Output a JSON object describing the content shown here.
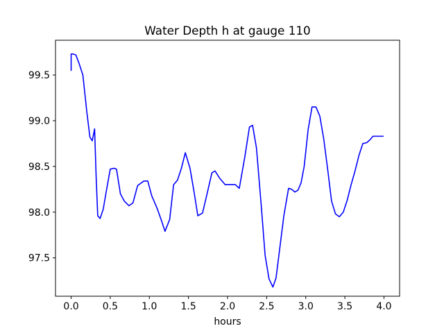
{
  "chart_data": {
    "type": "line",
    "title": "Water Depth h at gauge 110",
    "xlabel": "hours",
    "ylabel": "",
    "xlim": [
      -0.2,
      4.2
    ],
    "ylim": [
      97.08,
      99.88
    ],
    "xticks": [
      0.0,
      0.5,
      1.0,
      1.5,
      2.0,
      2.5,
      3.0,
      3.5,
      4.0
    ],
    "xtick_labels": [
      "0.0",
      "0.5",
      "1.0",
      "1.5",
      "2.0",
      "2.5",
      "3.0",
      "3.5",
      "4.0"
    ],
    "yticks": [
      97.5,
      98.0,
      98.5,
      99.0,
      99.5
    ],
    "ytick_labels": [
      "97.5",
      "98.0",
      "98.5",
      "99.0",
      "99.5"
    ],
    "grid": false,
    "series": [
      {
        "color": "#0000ff",
        "x": [
          0.0,
          0.0,
          0.02,
          0.06,
          0.1,
          0.15,
          0.2,
          0.24,
          0.27,
          0.3,
          0.32,
          0.34,
          0.37,
          0.41,
          0.45,
          0.5,
          0.55,
          0.58,
          0.63,
          0.68,
          0.74,
          0.79,
          0.85,
          0.93,
          0.98,
          1.03,
          1.1,
          1.15,
          1.2,
          1.26,
          1.31,
          1.36,
          1.41,
          1.46,
          1.52,
          1.57,
          1.62,
          1.68,
          1.73,
          1.8,
          1.84,
          1.9,
          1.97,
          2.03,
          2.1,
          2.15,
          2.22,
          2.28,
          2.32,
          2.37,
          2.43,
          2.48,
          2.53,
          2.58,
          2.62,
          2.67,
          2.72,
          2.78,
          2.82,
          2.86,
          2.9,
          2.94,
          2.98,
          3.03,
          3.08,
          3.13,
          3.18,
          3.23,
          3.28,
          3.33,
          3.38,
          3.43,
          3.48,
          3.53,
          3.58,
          3.63,
          3.68,
          3.73,
          3.78,
          3.82,
          3.86,
          3.9,
          3.95,
          3.99
        ],
        "y": [
          99.55,
          99.73,
          99.73,
          99.72,
          99.63,
          99.5,
          99.1,
          98.82,
          98.78,
          98.91,
          98.38,
          97.96,
          97.93,
          98.03,
          98.23,
          98.47,
          98.48,
          98.47,
          98.2,
          98.12,
          98.07,
          98.1,
          98.29,
          98.34,
          98.34,
          98.18,
          98.04,
          97.92,
          97.79,
          97.92,
          98.3,
          98.35,
          98.48,
          98.65,
          98.48,
          98.23,
          97.96,
          97.99,
          98.17,
          98.43,
          98.45,
          98.37,
          98.3,
          98.3,
          98.3,
          98.26,
          98.6,
          98.93,
          98.95,
          98.7,
          98.08,
          97.53,
          97.27,
          97.18,
          97.28,
          97.62,
          97.96,
          98.26,
          98.25,
          98.22,
          98.24,
          98.32,
          98.5,
          98.9,
          99.15,
          99.15,
          99.05,
          98.8,
          98.47,
          98.12,
          97.98,
          97.95,
          98.0,
          98.13,
          98.3,
          98.45,
          98.62,
          98.75,
          98.76,
          98.79,
          98.83,
          98.83,
          98.83,
          98.83
        ]
      }
    ]
  }
}
